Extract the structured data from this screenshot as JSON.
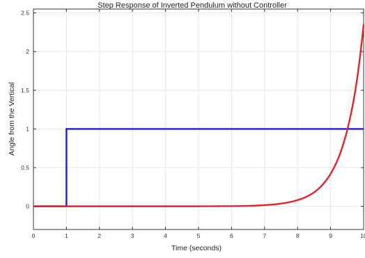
{
  "chart_data": {
    "type": "line",
    "title": "Step Response of Inverted Pendulum without Controller",
    "xlabel": "Time (seconds)",
    "ylabel": "Angle from the Vertical",
    "xlim": [
      0,
      10
    ],
    "ylim": [
      -0.3,
      2.55
    ],
    "grid": true,
    "x_ticks": [
      0,
      1,
      2,
      3,
      4,
      5,
      6,
      7,
      8,
      9,
      10
    ],
    "y_ticks": [
      0,
      0.5,
      1,
      1.5,
      2,
      2.5
    ],
    "x_tick_labels": [
      "0",
      "1",
      "2",
      "3",
      "4",
      "5",
      "6",
      "7",
      "8",
      "9",
      "10"
    ],
    "y_tick_labels": [
      "0",
      "0.5",
      "1",
      "1.5",
      "2",
      "2.5"
    ],
    "series": [
      {
        "color": "#1a1adb",
        "x": [
          0,
          1,
          1,
          10
        ],
        "y": [
          0,
          0,
          1,
          1
        ]
      },
      {
        "color": "#e8202a",
        "x": [
          0,
          1,
          2,
          3,
          4,
          5,
          6,
          6.5,
          7,
          7.5,
          8,
          8.5,
          9,
          9.25,
          9.5,
          9.75,
          10
        ],
        "y": [
          0,
          0,
          0,
          0,
          0,
          0,
          0.002,
          0.006,
          0.015,
          0.035,
          0.08,
          0.18,
          0.42,
          0.64,
          0.98,
          1.5,
          2.35
        ]
      }
    ]
  }
}
